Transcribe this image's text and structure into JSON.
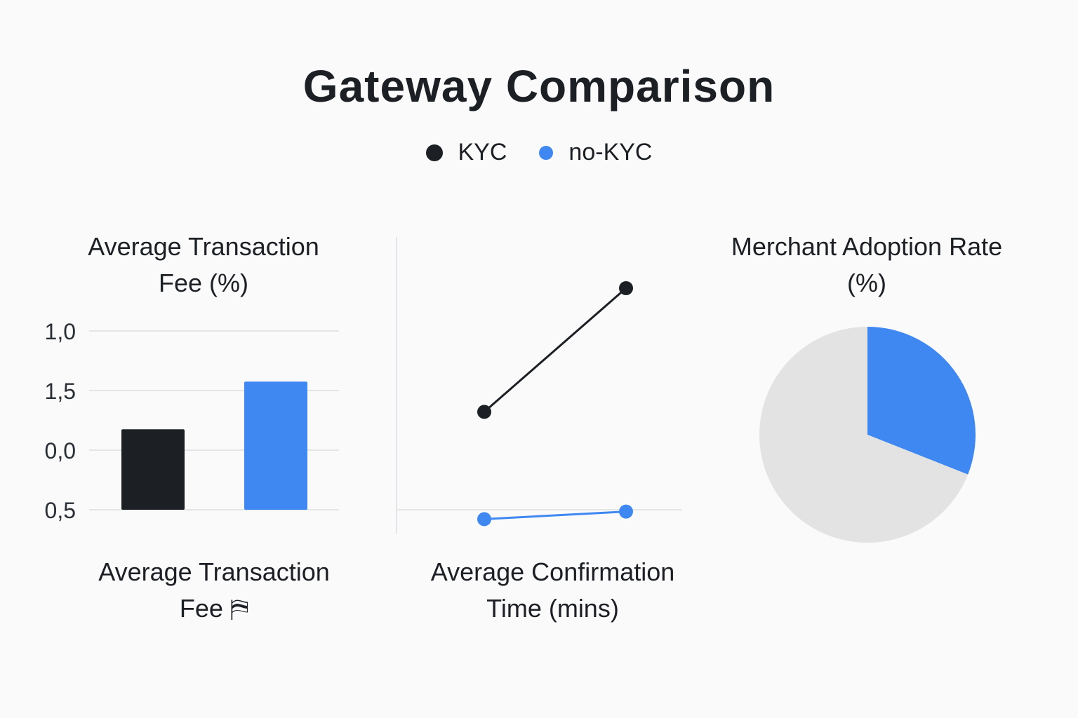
{
  "title": "Gateway Comparison",
  "legend": [
    {
      "name": "KYC",
      "color": "#1c1f24"
    },
    {
      "name": "no-KYC",
      "color": "#3f88f2"
    }
  ],
  "colors": {
    "kyc": "#1c1f24",
    "no_kyc": "#3f88f2",
    "pie_rest": "#e2e3e2",
    "grid": "#e4e5e6"
  },
  "chart_data": [
    {
      "type": "bar",
      "title": "Average Transaction Fee (%)",
      "xlabel": "Average Transaction Fee",
      "xlabel_glyph": "⛿",
      "yticks": [
        "1,0",
        "1,5",
        "0,0",
        "0,5"
      ],
      "categories": [
        "KYC",
        "no-KYC"
      ],
      "values": [
        0.27,
        0.43
      ],
      "ylim": [
        0,
        0.6
      ],
      "grid": true
    },
    {
      "type": "line",
      "title": "",
      "xlabel": "Average Confirmation Time (mins)",
      "x": [
        1,
        2
      ],
      "series": [
        {
          "name": "KYC",
          "values": [
            8.7,
            18.5
          ]
        },
        {
          "name": "no-KYC",
          "values": [
            0.2,
            0.8
          ]
        }
      ],
      "ylim": [
        -1,
        23
      ],
      "grid": true
    },
    {
      "type": "pie",
      "title": "Merchant Adoption Rate (%)",
      "slices": [
        {
          "name": "no-KYC",
          "value": 31
        },
        {
          "name": "KYC",
          "value": 69
        }
      ]
    }
  ]
}
